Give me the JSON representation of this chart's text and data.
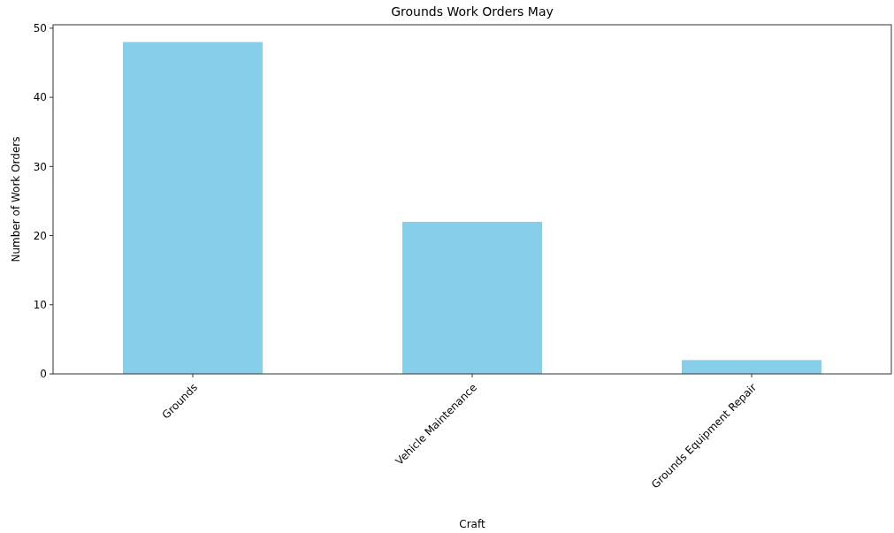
{
  "chart_data": {
    "type": "bar",
    "title": "Grounds Work Orders May",
    "xlabel": "Craft",
    "ylabel": "Number of Work Orders",
    "categories": [
      "Grounds",
      "Vehicle Maintenance",
      "Grounds Equipment Repair"
    ],
    "values": [
      48,
      22,
      2
    ],
    "color": "#87ceeb",
    "ylim": [
      0,
      50.5
    ],
    "yticks": [
      0,
      10,
      20,
      30,
      40,
      50
    ],
    "grid": false
  }
}
